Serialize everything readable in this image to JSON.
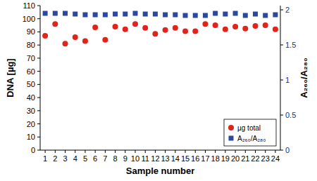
{
  "chart_data": {
    "type": "scatter",
    "x_label": "Sample number",
    "y_label": "DNA [µg]",
    "y2_label": "A₂₆₀/A₂₈₀",
    "categories": [
      "1",
      "2",
      "3",
      "4",
      "5",
      "6",
      "7",
      "8",
      "9",
      "10",
      "11",
      "12",
      "13",
      "14",
      "15",
      "16",
      "17",
      "18",
      "19",
      "20",
      "21",
      "22",
      "23",
      "24"
    ],
    "ylim": [
      0,
      110
    ],
    "yticks": [
      0,
      10,
      20,
      30,
      40,
      50,
      60,
      70,
      80,
      90,
      100,
      110
    ],
    "y2lim": [
      0,
      2.06
    ],
    "y2ticks": [
      0,
      0.5,
      1,
      1.5,
      2
    ],
    "grid": false,
    "legend": "lower right",
    "series": [
      {
        "name": "µg total",
        "color": "#e2231a",
        "marker": "circle",
        "values": [
          87,
          96,
          81,
          86,
          83,
          93.5,
          84,
          94,
          92,
          96,
          93,
          88.5,
          91.5,
          93,
          90.5,
          90.5,
          96,
          95,
          92,
          94,
          92.5,
          94.5,
          95,
          92
        ]
      },
      {
        "name": "A₂₆₀/A₂₈₀",
        "color": "#2b479e",
        "marker": "square",
        "axis": "y2",
        "values": [
          1.95,
          1.95,
          1.95,
          1.94,
          1.93,
          1.93,
          1.93,
          1.94,
          1.94,
          1.95,
          1.94,
          1.94,
          1.93,
          1.93,
          1.92,
          1.92,
          1.92,
          1.95,
          1.94,
          1.95,
          1.92,
          1.94,
          1.92,
          1.93
        ]
      }
    ]
  }
}
